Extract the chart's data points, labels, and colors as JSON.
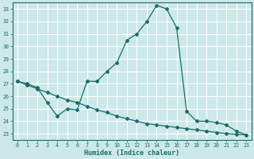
{
  "xlabel": "Humidex (Indice chaleur)",
  "bg_color": "#cce8e8",
  "grid_color": "#ffffff",
  "line_color": "#1a6b6b",
  "xlim": [
    -0.5,
    23.5
  ],
  "ylim": [
    22.5,
    33.5
  ],
  "xticks": [
    0,
    1,
    2,
    3,
    4,
    5,
    6,
    7,
    8,
    9,
    10,
    11,
    12,
    13,
    14,
    15,
    16,
    17,
    18,
    19,
    20,
    21,
    22,
    23
  ],
  "yticks": [
    23,
    24,
    25,
    26,
    27,
    28,
    29,
    30,
    31,
    32,
    33
  ],
  "curve1_x": [
    0,
    1,
    2,
    3,
    4,
    5,
    6,
    7,
    8,
    9,
    10,
    11,
    12,
    13,
    14,
    15,
    16,
    17,
    18,
    19,
    20,
    21,
    22,
    23
  ],
  "curve1_y": [
    27.2,
    27.0,
    26.7,
    25.5,
    24.4,
    25.0,
    24.9,
    27.2,
    27.2,
    28.0,
    28.7,
    30.5,
    31.0,
    32.0,
    33.3,
    33.0,
    31.5,
    24.8,
    24.0,
    24.0,
    23.9,
    23.7,
    23.2,
    22.9
  ],
  "curve2_x": [
    0,
    1,
    2,
    3,
    4,
    5,
    6,
    7,
    8,
    9,
    10,
    11,
    12,
    13,
    14,
    15,
    16,
    17,
    18,
    19,
    20,
    21,
    22,
    23
  ],
  "curve2_y": [
    27.2,
    26.9,
    26.6,
    26.3,
    26.0,
    25.7,
    25.5,
    25.2,
    24.9,
    24.7,
    24.4,
    24.2,
    24.0,
    23.8,
    23.7,
    23.6,
    23.5,
    23.4,
    23.3,
    23.2,
    23.1,
    23.0,
    22.95,
    22.9
  ]
}
